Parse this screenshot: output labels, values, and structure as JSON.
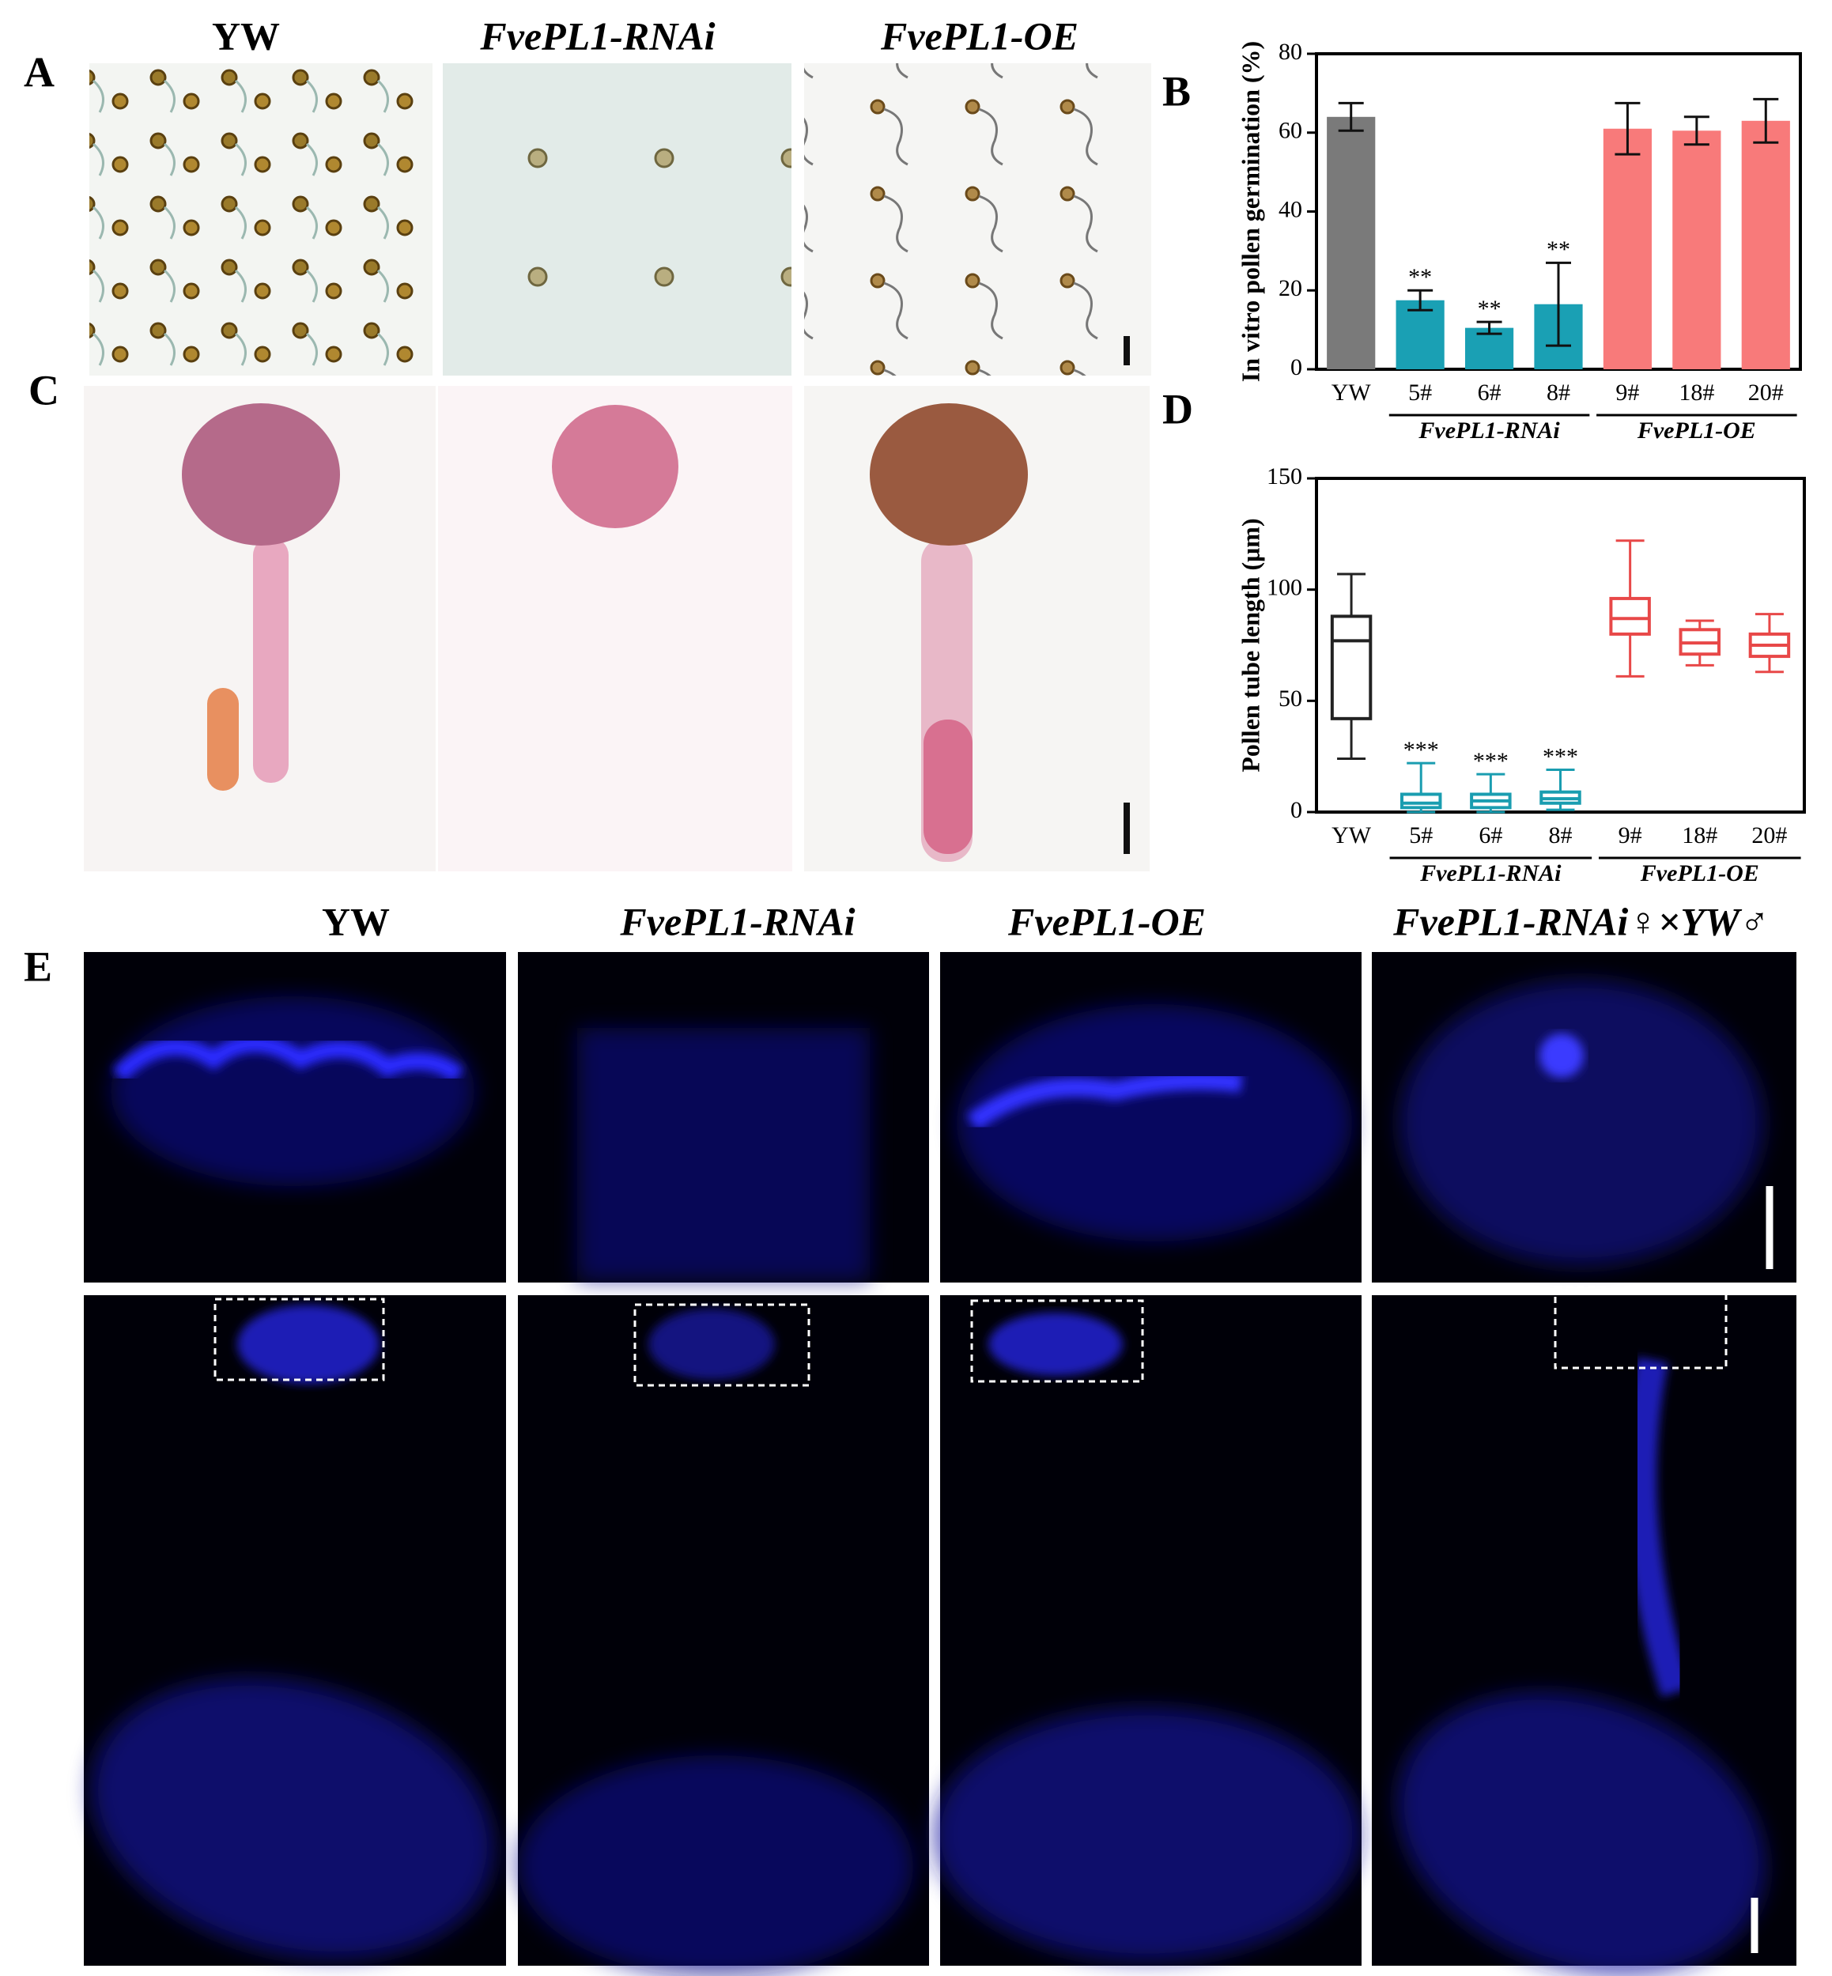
{
  "panel_labels": [
    "A",
    "B",
    "C",
    "D",
    "E"
  ],
  "top_titles": [
    "YW",
    "FvePL1-RNAi",
    "FvePL1-OE"
  ],
  "bottom_titles": [
    "YW",
    "FvePL1-RNAi",
    "FvePL1-OE",
    "FvePL1-RNAi♀×YW♂"
  ],
  "chart_data": [
    {
      "type": "bar",
      "y_label": "In vitro pollen germination (%)",
      "categories": [
        "YW",
        "5#",
        "6#",
        "8#",
        "9#",
        "18#",
        "20#"
      ],
      "values": [
        64,
        17.5,
        10.5,
        16.5,
        61,
        60.5,
        63
      ],
      "errors": [
        3.5,
        2.5,
        1.5,
        10.5,
        6.5,
        3.5,
        5.5
      ],
      "colors": [
        "#7a7a7a",
        "#1aa0b4",
        "#1aa0b4",
        "#1aa0b4",
        "#f87a7a",
        "#f87a7a",
        "#f87a7a"
      ],
      "significance": [
        null,
        "**",
        "**",
        "**",
        null,
        null,
        null
      ],
      "groups": [
        {
          "label": "FvePL1-RNAi",
          "categories": [
            "5#",
            "6#",
            "8#"
          ]
        },
        {
          "label": "FvePL1-OE",
          "categories": [
            "9#",
            "18#",
            "20#"
          ]
        }
      ],
      "ylim": [
        0,
        80
      ],
      "yticks": [
        0,
        20,
        40,
        60,
        80
      ]
    },
    {
      "type": "box",
      "y_label": "Pollen tube length  (μm)",
      "categories": [
        "YW",
        "5#",
        "6#",
        "8#",
        "9#",
        "18#",
        "20#"
      ],
      "boxes": [
        {
          "min": 24,
          "q1": 42,
          "median": 77,
          "q3": 88,
          "max": 107
        },
        {
          "min": 0,
          "q1": 2,
          "median": 4,
          "q3": 8,
          "max": 22
        },
        {
          "min": 0,
          "q1": 2,
          "median": 5,
          "q3": 8,
          "max": 17
        },
        {
          "min": 1,
          "q1": 4,
          "median": 6,
          "q3": 9,
          "max": 19
        },
        {
          "min": 61,
          "q1": 80,
          "median": 87,
          "q3": 96,
          "max": 122
        },
        {
          "min": 66,
          "q1": 71,
          "median": 76,
          "q3": 82,
          "max": 86
        },
        {
          "min": 63,
          "q1": 70,
          "median": 75,
          "q3": 80,
          "max": 89
        }
      ],
      "colors": [
        "#222222",
        "#1a9db0",
        "#1a9db0",
        "#1a9db0",
        "#e84848",
        "#e84848",
        "#e84848"
      ],
      "significance": [
        null,
        "***",
        "***",
        "***",
        null,
        null,
        null
      ],
      "groups": [
        {
          "label": "FvePL1-RNAi",
          "categories": [
            "5#",
            "6#",
            "8#"
          ]
        },
        {
          "label": "FvePL1-OE",
          "categories": [
            "9#",
            "18#",
            "20#"
          ]
        }
      ],
      "ylim": [
        0,
        150
      ],
      "yticks": [
        0,
        50,
        100,
        150
      ]
    }
  ]
}
